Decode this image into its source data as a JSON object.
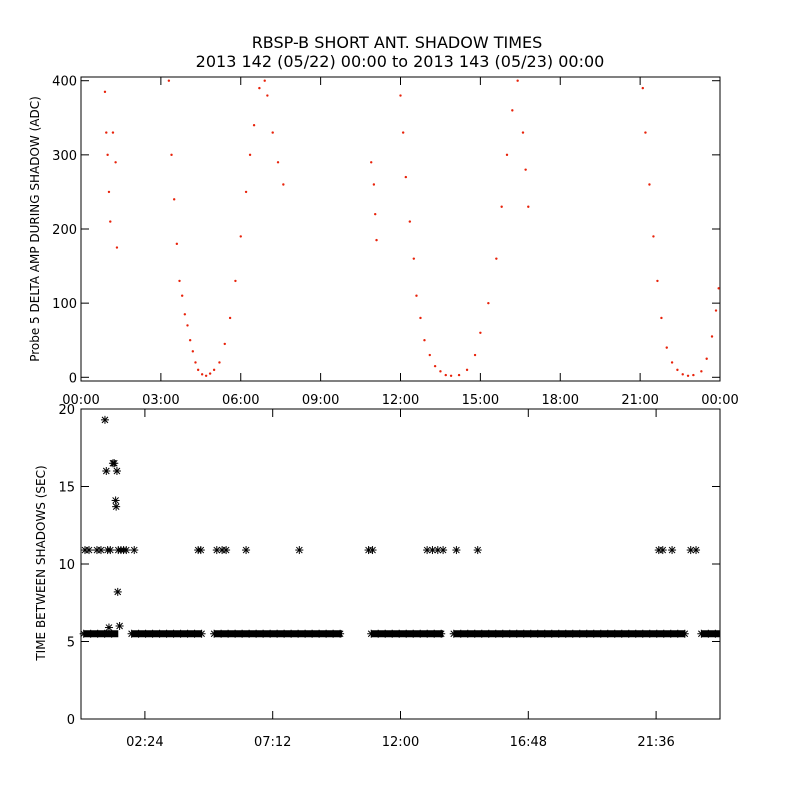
{
  "title_line1": "RBSP-B SHORT ANT. SHADOW TIMES",
  "title_line2": "2013 142 (05/22) 00:00 to 2013 143 (05/23) 00:00",
  "chart_data": [
    {
      "type": "scatter",
      "ylabel": "Probe 5 DELTA AMP DURING SHADOW (ADC)",
      "xlabel": "",
      "x_unit": "hours since 2013-05-22 00:00",
      "xlim": [
        0,
        24
      ],
      "ylim": [
        -5,
        405
      ],
      "x_tick_labels": [
        "00:00",
        "03:00",
        "06:00",
        "09:00",
        "12:00",
        "15:00",
        "18:00",
        "21:00",
        "00:00"
      ],
      "y_tick_labels": [
        "0",
        "100",
        "200",
        "300",
        "400"
      ],
      "marker_color": "#e8220a",
      "series": [
        {
          "points": [
            [
              0.9,
              385
            ],
            [
              0.95,
              330
            ],
            [
              1.0,
              300
            ],
            [
              1.05,
              250
            ],
            [
              1.1,
              210
            ],
            [
              1.2,
              330
            ],
            [
              1.3,
              290
            ],
            [
              1.35,
              175
            ],
            [
              3.3,
              400
            ],
            [
              3.4,
              300
            ],
            [
              3.5,
              240
            ],
            [
              3.6,
              180
            ],
            [
              3.7,
              130
            ],
            [
              3.8,
              110
            ],
            [
              3.9,
              85
            ],
            [
              4.0,
              70
            ],
            [
              4.1,
              50
            ],
            [
              4.2,
              35
            ],
            [
              4.3,
              20
            ],
            [
              4.4,
              10
            ],
            [
              4.55,
              4
            ],
            [
              4.7,
              2
            ],
            [
              4.85,
              5
            ],
            [
              5.0,
              10
            ],
            [
              5.2,
              20
            ],
            [
              5.4,
              45
            ],
            [
              5.6,
              80
            ],
            [
              5.8,
              130
            ],
            [
              6.0,
              190
            ],
            [
              6.2,
              250
            ],
            [
              6.35,
              300
            ],
            [
              6.5,
              340
            ],
            [
              6.7,
              390
            ],
            [
              6.9,
              400
            ],
            [
              7.0,
              380
            ],
            [
              7.2,
              330
            ],
            [
              7.4,
              290
            ],
            [
              7.6,
              260
            ],
            [
              10.9,
              290
            ],
            [
              11.0,
              260
            ],
            [
              11.05,
              220
            ],
            [
              11.1,
              185
            ],
            [
              12.0,
              380
            ],
            [
              12.1,
              330
            ],
            [
              12.2,
              270
            ],
            [
              12.35,
              210
            ],
            [
              12.5,
              160
            ],
            [
              12.6,
              110
            ],
            [
              12.75,
              80
            ],
            [
              12.9,
              50
            ],
            [
              13.1,
              30
            ],
            [
              13.3,
              15
            ],
            [
              13.5,
              8
            ],
            [
              13.7,
              3
            ],
            [
              13.9,
              2
            ],
            [
              14.2,
              3
            ],
            [
              14.5,
              10
            ],
            [
              14.8,
              30
            ],
            [
              15.0,
              60
            ],
            [
              15.3,
              100
            ],
            [
              15.6,
              160
            ],
            [
              15.8,
              230
            ],
            [
              16.0,
              300
            ],
            [
              16.2,
              360
            ],
            [
              16.4,
              400
            ],
            [
              16.6,
              330
            ],
            [
              16.7,
              280
            ],
            [
              16.8,
              230
            ],
            [
              21.1,
              390
            ],
            [
              21.2,
              330
            ],
            [
              21.35,
              260
            ],
            [
              21.5,
              190
            ],
            [
              21.65,
              130
            ],
            [
              21.8,
              80
            ],
            [
              22.0,
              40
            ],
            [
              22.2,
              20
            ],
            [
              22.4,
              10
            ],
            [
              22.6,
              4
            ],
            [
              22.8,
              2
            ],
            [
              23.0,
              3
            ],
            [
              23.3,
              8
            ],
            [
              23.5,
              25
            ],
            [
              23.7,
              55
            ],
            [
              23.85,
              90
            ],
            [
              23.95,
              120
            ]
          ]
        }
      ]
    },
    {
      "type": "scatter",
      "ylabel": "TIME BETWEEN SHADOWS (SEC)",
      "xlabel": "",
      "x_unit": "hours since 2013-05-22 00:00",
      "xlim": [
        0,
        24
      ],
      "ylim": [
        0,
        20
      ],
      "x_tick_labels": [
        "02:24",
        "07:12",
        "12:00",
        "16:48",
        "21:36"
      ],
      "x_tick_values": [
        2.4,
        7.2,
        12.0,
        16.8,
        21.6
      ],
      "y_tick_labels": [
        "0",
        "5",
        "10",
        "15",
        "20"
      ],
      "marker_color": "#000000",
      "baseline_value": 5.5,
      "baseline_segments": [
        [
          0.1,
          1.4
        ],
        [
          1.9,
          4.55
        ],
        [
          5.0,
          9.8
        ],
        [
          10.9,
          13.6
        ],
        [
          14.0,
          22.7
        ],
        [
          23.3,
          24.0
        ]
      ],
      "series": [
        {
          "points": [
            [
              0.15,
              10.9
            ],
            [
              0.3,
              10.9
            ],
            [
              0.6,
              10.9
            ],
            [
              0.75,
              10.9
            ],
            [
              0.9,
              19.3
            ],
            [
              0.95,
              16.0
            ],
            [
              1.0,
              10.9
            ],
            [
              1.05,
              5.9
            ],
            [
              1.1,
              10.9
            ],
            [
              1.2,
              16.5
            ],
            [
              1.25,
              16.5
            ],
            [
              1.3,
              14.1
            ],
            [
              1.32,
              13.7
            ],
            [
              1.35,
              16.0
            ],
            [
              1.4,
              10.9
            ],
            [
              1.45,
              6.0
            ],
            [
              1.5,
              10.9
            ],
            [
              1.38,
              8.2
            ],
            [
              1.6,
              10.9
            ],
            [
              1.7,
              10.9
            ],
            [
              2.0,
              10.9
            ],
            [
              4.4,
              10.9
            ],
            [
              4.5,
              10.9
            ],
            [
              5.1,
              10.9
            ],
            [
              5.3,
              10.9
            ],
            [
              5.45,
              10.9
            ],
            [
              6.2,
              10.9
            ],
            [
              8.2,
              10.9
            ],
            [
              10.8,
              10.9
            ],
            [
              10.95,
              10.9
            ],
            [
              13.0,
              10.9
            ],
            [
              13.2,
              10.9
            ],
            [
              13.4,
              10.9
            ],
            [
              13.6,
              10.9
            ],
            [
              14.1,
              10.9
            ],
            [
              14.9,
              10.9
            ],
            [
              21.7,
              10.9
            ],
            [
              21.85,
              10.9
            ],
            [
              22.2,
              10.9
            ],
            [
              22.9,
              10.9
            ],
            [
              23.1,
              10.9
            ]
          ]
        }
      ]
    }
  ]
}
